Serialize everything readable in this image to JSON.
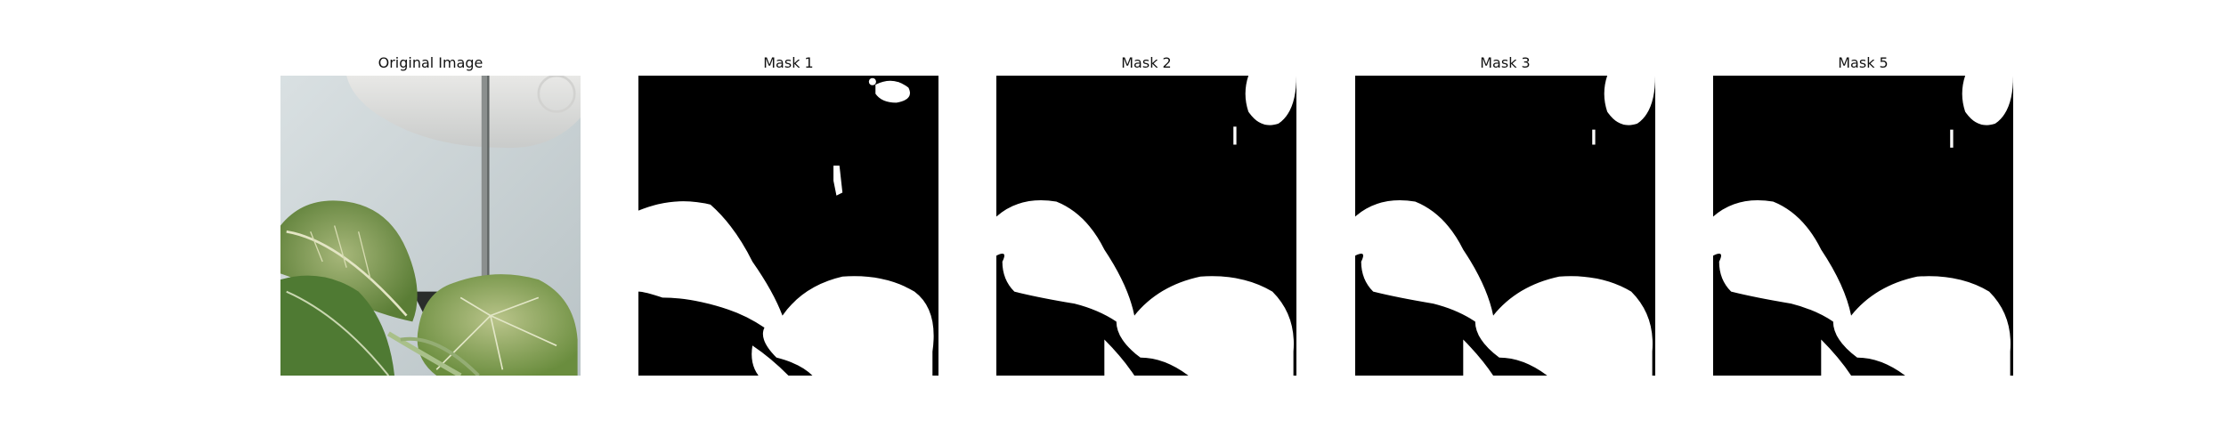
{
  "figure": {
    "panels": [
      {
        "title": "Original Image",
        "kind": "photo"
      },
      {
        "title": "Mask 1",
        "kind": "mask"
      },
      {
        "title": "Mask 2",
        "kind": "mask"
      },
      {
        "title": "Mask 3",
        "kind": "mask"
      },
      {
        "title": "Mask 5",
        "kind": "mask"
      }
    ]
  },
  "colors": {
    "background": "#ffffff",
    "mask_bg": "#000000",
    "mask_fg": "#ffffff",
    "wall": "#cdd5d7",
    "leaf": "#6f8f45"
  }
}
